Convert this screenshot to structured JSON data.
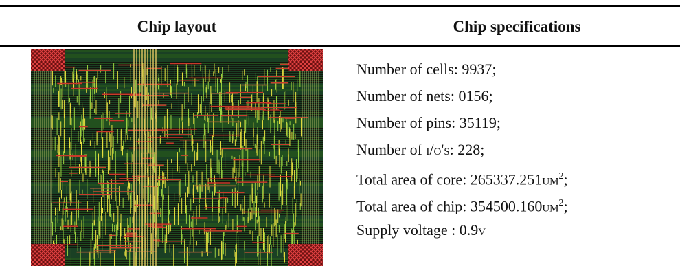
{
  "header": {
    "left": "Chip layout",
    "right": "Chip specifications"
  },
  "specs": [
    [
      {
        "text": "Number of cells: 9937;"
      }
    ],
    [
      {
        "text": "Number of nets: 0156;"
      }
    ],
    [
      {
        "text": "Number of pins: 35119;"
      }
    ],
    [
      {
        "text": "Number of "
      },
      {
        "text": "I/O's",
        "small_caps": true
      },
      {
        "text": ": 228;"
      }
    ],
    [
      {
        "text": "Total area of core: 265337.251"
      },
      {
        "text": "um",
        "small_caps": true
      },
      {
        "text": "2",
        "sup": true
      },
      {
        "text": ";"
      }
    ],
    [
      {
        "text": "Total area of chip: 354500.160"
      },
      {
        "text": "um",
        "small_caps": true
      },
      {
        "text": "2",
        "sup": true
      },
      {
        "text": ";"
      }
    ],
    [
      {
        "text": "Supply voltage : 0.9"
      },
      {
        "text": "v",
        "small_caps": true
      }
    ]
  ]
}
